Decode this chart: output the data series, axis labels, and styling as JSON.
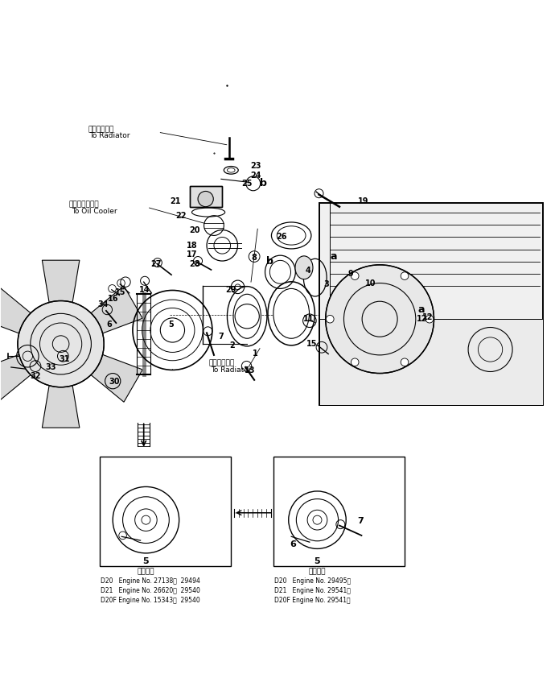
{
  "bg_color": "#ffffff",
  "line_color": "#000000",
  "fig_width": 6.9,
  "fig_height": 8.68,
  "dpi": 100,
  "annotations": {
    "top_label1": "ラジエータへ",
    "top_label1_en": "To Radiator",
    "top_label2": "オイルクーラへ",
    "top_label2_en": "To Oil Cooler",
    "bot_label1": "ラジエータへ",
    "bot_label1_en": "To Radiator",
    "kaiyou": "適用号機",
    "left_box_lines": [
      "D20   Engine No. 27138～  29494",
      "D21   Engine No. 26620～  29540",
      "D20F Engine No. 15343～  29540"
    ],
    "right_box_lines": [
      "D20   Engine No. 29495～",
      "D21   Engine No. 29541～",
      "D20F Engine No. 29541～"
    ]
  }
}
